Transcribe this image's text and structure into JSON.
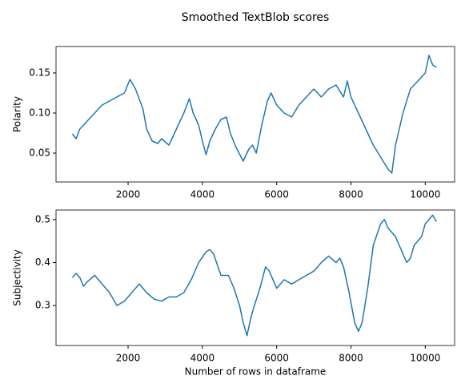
{
  "title": "Smoothed TextBlob scores",
  "chart_data": [
    {
      "type": "line",
      "ylabel": "Polarity",
      "color": "#1f77b4",
      "x": [
        500,
        600,
        700,
        900,
        1100,
        1300,
        1500,
        1700,
        1900,
        2050,
        2200,
        2400,
        2500,
        2650,
        2800,
        2900,
        3100,
        3300,
        3500,
        3650,
        3750,
        3900,
        4000,
        4100,
        4200,
        4350,
        4500,
        4650,
        4750,
        4900,
        5100,
        5250,
        5350,
        5450,
        5600,
        5750,
        5850,
        6000,
        6200,
        6400,
        6600,
        6800,
        7000,
        7200,
        7400,
        7600,
        7800,
        7900,
        8000,
        8200,
        8400,
        8600,
        8800,
        9000,
        9100,
        9200,
        9400,
        9600,
        9800,
        10000,
        10100,
        10200,
        10300
      ],
      "values": [
        0.074,
        0.068,
        0.08,
        0.09,
        0.1,
        0.11,
        0.115,
        0.12,
        0.125,
        0.142,
        0.13,
        0.105,
        0.08,
        0.065,
        0.062,
        0.068,
        0.06,
        0.08,
        0.1,
        0.118,
        0.1,
        0.085,
        0.065,
        0.048,
        0.065,
        0.08,
        0.092,
        0.095,
        0.075,
        0.058,
        0.04,
        0.055,
        0.06,
        0.05,
        0.085,
        0.115,
        0.125,
        0.11,
        0.1,
        0.095,
        0.11,
        0.12,
        0.13,
        0.12,
        0.13,
        0.135,
        0.12,
        0.14,
        0.12,
        0.1,
        0.08,
        0.06,
        0.045,
        0.03,
        0.025,
        0.06,
        0.1,
        0.13,
        0.14,
        0.15,
        0.172,
        0.16,
        0.157
      ],
      "xlim": [
        60,
        10790
      ],
      "xticks": [
        2000,
        4000,
        6000,
        8000,
        10000
      ],
      "ylim": [
        0.014,
        0.183
      ],
      "yticks": [
        0.05,
        {
          "value": 0.1,
          "label": "0.10"
        },
        0.15
      ]
    },
    {
      "type": "line",
      "xlabel": "Number of rows in dataframe",
      "ylabel": "Subjectivity",
      "color": "#1f77b4",
      "x": [
        500,
        600,
        700,
        800,
        900,
        1100,
        1300,
        1500,
        1700,
        1900,
        2100,
        2300,
        2500,
        2700,
        2900,
        3100,
        3300,
        3500,
        3700,
        3900,
        4100,
        4200,
        4300,
        4500,
        4700,
        4850,
        5000,
        5100,
        5200,
        5300,
        5400,
        5550,
        5700,
        5800,
        6000,
        6200,
        6400,
        6600,
        6800,
        7000,
        7200,
        7400,
        7600,
        7700,
        7800,
        7950,
        8100,
        8200,
        8300,
        8450,
        8600,
        8800,
        8900,
        9000,
        9200,
        9300,
        9400,
        9500,
        9600,
        9700,
        9900,
        10000,
        10200,
        10300
      ],
      "values": [
        0.365,
        0.375,
        0.365,
        0.345,
        0.355,
        0.37,
        0.35,
        0.33,
        0.3,
        0.31,
        0.33,
        0.35,
        0.33,
        0.315,
        0.31,
        0.32,
        0.32,
        0.33,
        0.36,
        0.4,
        0.425,
        0.43,
        0.42,
        0.37,
        0.37,
        0.34,
        0.3,
        0.26,
        0.23,
        0.27,
        0.3,
        0.34,
        0.39,
        0.38,
        0.34,
        0.36,
        0.35,
        0.36,
        0.37,
        0.38,
        0.4,
        0.415,
        0.4,
        0.41,
        0.39,
        0.33,
        0.26,
        0.24,
        0.26,
        0.34,
        0.44,
        0.49,
        0.5,
        0.48,
        0.46,
        0.44,
        0.42,
        0.4,
        0.41,
        0.44,
        0.46,
        0.49,
        0.51,
        0.495
      ],
      "xlim": [
        60,
        10790
      ],
      "xticks": [
        2000,
        4000,
        6000,
        8000,
        10000
      ],
      "ylim": [
        0.207,
        0.522
      ],
      "yticks": [
        0.3,
        0.4,
        0.5
      ]
    }
  ]
}
